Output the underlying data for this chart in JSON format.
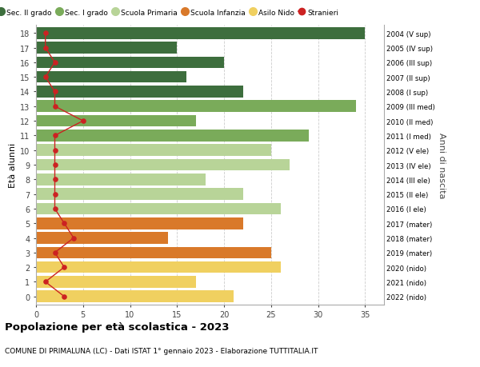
{
  "ages": [
    18,
    17,
    16,
    15,
    14,
    13,
    12,
    11,
    10,
    9,
    8,
    7,
    6,
    5,
    4,
    3,
    2,
    1,
    0
  ],
  "years": [
    "2004 (V sup)",
    "2005 (IV sup)",
    "2006 (III sup)",
    "2007 (II sup)",
    "2008 (I sup)",
    "2009 (III med)",
    "2010 (II med)",
    "2011 (I med)",
    "2012 (V ele)",
    "2013 (IV ele)",
    "2014 (III ele)",
    "2015 (II ele)",
    "2016 (I ele)",
    "2017 (mater)",
    "2018 (mater)",
    "2019 (mater)",
    "2020 (nido)",
    "2021 (nido)",
    "2022 (nido)"
  ],
  "bar_values": [
    35,
    15,
    20,
    16,
    22,
    34,
    17,
    29,
    25,
    27,
    18,
    22,
    26,
    22,
    14,
    25,
    26,
    17,
    21
  ],
  "bar_colors": [
    "#3d6e3d",
    "#3d6e3d",
    "#3d6e3d",
    "#3d6e3d",
    "#3d6e3d",
    "#7aab5a",
    "#7aab5a",
    "#7aab5a",
    "#b8d498",
    "#b8d498",
    "#b8d498",
    "#b8d498",
    "#b8d498",
    "#d9792a",
    "#d9792a",
    "#d9792a",
    "#f0d060",
    "#f0d060",
    "#f0d060"
  ],
  "stranieri_values": [
    1,
    1,
    2,
    1,
    2,
    2,
    5,
    2,
    2,
    2,
    2,
    2,
    2,
    3,
    4,
    2,
    3,
    1,
    3
  ],
  "title": "Popolazione per età scolastica - 2023",
  "subtitle": "COMUNE DI PRIMALUNA (LC) - Dati ISTAT 1° gennaio 2023 - Elaborazione TUTTITALIA.IT",
  "ylabel": "Età alunni",
  "y2label": "Anni di nascita",
  "xlabel_ticks": [
    0,
    5,
    10,
    15,
    20,
    25,
    30,
    35
  ],
  "xlim": [
    0,
    37
  ],
  "legend_labels": [
    "Sec. II grado",
    "Sec. I grado",
    "Scuola Primaria",
    "Scuola Infanzia",
    "Asilo Nido",
    "Stranieri"
  ],
  "legend_colors": [
    "#3d6e3d",
    "#7aab5a",
    "#b8d498",
    "#d9792a",
    "#f0d060",
    "#cc2222"
  ],
  "color_stranieri": "#cc2222",
  "bg_color": "#ffffff",
  "grid_color": "#cccccc"
}
